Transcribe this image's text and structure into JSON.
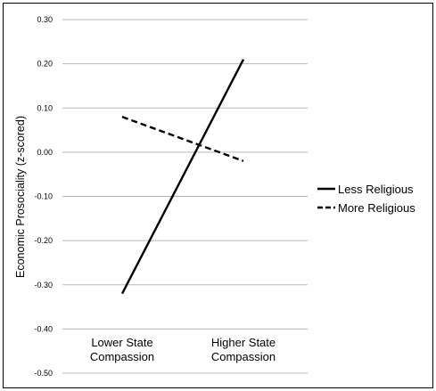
{
  "chart_data": {
    "type": "line",
    "categories": [
      "Lower State Compassion",
      "Higher State Compassion"
    ],
    "category_lines": [
      [
        "Lower State",
        "Compassion"
      ],
      [
        "Higher State",
        "Compassion"
      ]
    ],
    "series": [
      {
        "name": "Less Religious",
        "values": [
          -0.32,
          0.21
        ],
        "style": "solid",
        "color": "#000000"
      },
      {
        "name": "More Religious",
        "values": [
          0.08,
          -0.02
        ],
        "style": "dashed",
        "color": "#000000"
      }
    ],
    "title": "",
    "xlabel": "",
    "ylabel": "Economic Prosociality (z-scored)",
    "ylim": [
      -0.5,
      0.3
    ],
    "yticks": [
      {
        "value": 0.3,
        "label": "0.30"
      },
      {
        "value": 0.2,
        "label": "0.20"
      },
      {
        "value": 0.1,
        "label": "0.10"
      },
      {
        "value": 0.0,
        "label": "0.00"
      },
      {
        "value": -0.1,
        "label": "-0.10"
      },
      {
        "value": -0.2,
        "label": "-0.20"
      },
      {
        "value": -0.3,
        "label": "-0.30"
      },
      {
        "value": -0.4,
        "label": "-0.40"
      },
      {
        "value": -0.5,
        "label": "-0.50"
      }
    ],
    "grid": true,
    "legend": "right"
  }
}
